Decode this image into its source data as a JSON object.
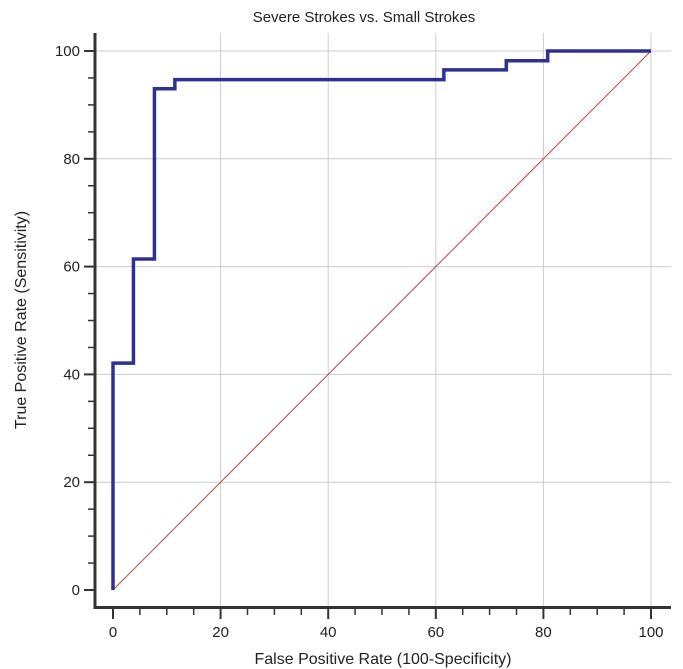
{
  "chart_data": {
    "type": "line",
    "title": "Severe Strokes vs. Small Strokes",
    "xlabel": "False Positive Rate (100-Specificity)",
    "ylabel": "True Positive Rate (Sensitivity)",
    "xlim": [
      0,
      100
    ],
    "ylim": [
      0,
      100
    ],
    "xticks": [
      "0",
      "20",
      "40",
      "60",
      "80",
      "100"
    ],
    "yticks": [
      "0",
      "20",
      "40",
      "60",
      "80",
      "100"
    ],
    "grid": true,
    "series": [
      {
        "step": true,
        "color": "#2e3192",
        "x": [
          0,
          0,
          3.8,
          3.8,
          7.7,
          7.7,
          11.5,
          11.5,
          61.5,
          61.5,
          73.1,
          73.1,
          80.8,
          80.8,
          100
        ],
        "y": [
          0,
          42.1,
          42.1,
          61.4,
          61.4,
          93.0,
          93.0,
          94.7,
          94.7,
          96.5,
          96.5,
          98.2,
          98.2,
          100,
          100
        ]
      },
      {
        "color": "#b34a3a",
        "x": [
          0,
          100
        ],
        "y": [
          0,
          100
        ]
      }
    ]
  }
}
